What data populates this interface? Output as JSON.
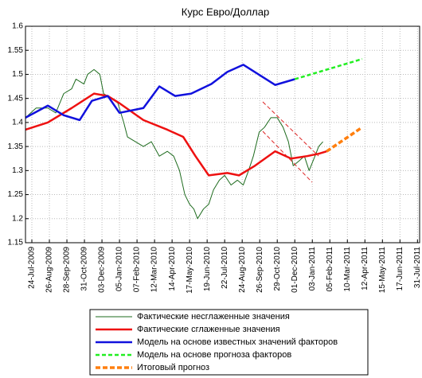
{
  "chart_data": {
    "type": "line",
    "title": "Курс Евро/Доллар",
    "xlim": [
      -12,
      730
    ],
    "xticks": [
      {
        "value": 0,
        "label": "24-Jul-2009"
      },
      {
        "value": 33,
        "label": "26-Aug-2009"
      },
      {
        "value": 66,
        "label": "28-Sep-2009"
      },
      {
        "value": 99,
        "label": "31-Oct-2009"
      },
      {
        "value": 132,
        "label": "03-Dec-2009"
      },
      {
        "value": 165,
        "label": "05-Jan-2010"
      },
      {
        "value": 198,
        "label": "07-Feb-2010"
      },
      {
        "value": 231,
        "label": "12-Mar-2010"
      },
      {
        "value": 264,
        "label": "14-Apr-2010"
      },
      {
        "value": 297,
        "label": "17-May-2010"
      },
      {
        "value": 330,
        "label": "19-Jun-2010"
      },
      {
        "value": 363,
        "label": "22-Jul-2010"
      },
      {
        "value": 396,
        "label": "24-Aug-2010"
      },
      {
        "value": 429,
        "label": "26-Sep-2010"
      },
      {
        "value": 462,
        "label": "29-Oct-2010"
      },
      {
        "value": 495,
        "label": "01-Dec-2010"
      },
      {
        "value": 528,
        "label": "03-Jan-2011"
      },
      {
        "value": 561,
        "label": "05-Feb-2011"
      },
      {
        "value": 594,
        "label": "10-Mar-2011"
      },
      {
        "value": 627,
        "label": "12-Apr-2011"
      },
      {
        "value": 660,
        "label": "15-May-2011"
      },
      {
        "value": 693,
        "label": "17-Jun-2011"
      },
      {
        "value": 726,
        "label": "31-Jul-2011"
      }
    ],
    "ylim": [
      1.15,
      1.6
    ],
    "yticks": [
      1.15,
      1.2,
      1.25,
      1.3,
      1.35,
      1.4,
      1.45,
      1.5,
      1.55,
      1.6
    ],
    "grid": true,
    "series": [
      {
        "name": "Фактические несглаженные значения",
        "color": "#1e6b1e",
        "style": "solid",
        "x": [
          -12,
          8,
          30,
          45,
          60,
          75,
          83,
          98,
          105,
          117,
          128,
          135,
          150,
          162,
          173,
          180,
          195,
          210,
          225,
          240,
          255,
          267,
          278,
          288,
          297,
          305,
          312,
          323,
          333,
          342,
          353,
          363,
          375,
          387,
          398,
          408,
          417,
          428,
          438,
          450,
          462,
          473,
          483,
          492,
          503,
          513,
          522,
          533,
          540,
          548
        ],
        "values": [
          1.41,
          1.43,
          1.43,
          1.42,
          1.46,
          1.47,
          1.49,
          1.48,
          1.5,
          1.51,
          1.5,
          1.46,
          1.45,
          1.44,
          1.4,
          1.37,
          1.36,
          1.35,
          1.36,
          1.33,
          1.34,
          1.33,
          1.3,
          1.25,
          1.23,
          1.22,
          1.2,
          1.22,
          1.23,
          1.26,
          1.28,
          1.29,
          1.27,
          1.28,
          1.27,
          1.3,
          1.33,
          1.38,
          1.39,
          1.41,
          1.41,
          1.39,
          1.36,
          1.31,
          1.32,
          1.33,
          1.3,
          1.33,
          1.35,
          1.36
        ]
      },
      {
        "name": "Фактические сглаженные значения",
        "color": "#ee1111",
        "style": "solid",
        "x": [
          -12,
          30,
          75,
          117,
          143,
          165,
          210,
          255,
          285,
          308,
          333,
          368,
          390,
          420,
          458,
          488,
          518,
          540,
          555
        ],
        "values": [
          1.385,
          1.4,
          1.43,
          1.46,
          1.455,
          1.44,
          1.405,
          1.385,
          1.37,
          1.33,
          1.29,
          1.295,
          1.29,
          1.31,
          1.34,
          1.325,
          1.33,
          1.335,
          1.34
        ]
      },
      {
        "name": "Модель на основе известных значений факторов",
        "color": "#1111dd",
        "style": "solid",
        "x": [
          -12,
          30,
          60,
          90,
          113,
          143,
          165,
          210,
          240,
          270,
          300,
          338,
          368,
          398,
          458,
          495
        ],
        "values": [
          1.41,
          1.435,
          1.415,
          1.405,
          1.445,
          1.455,
          1.42,
          1.43,
          1.475,
          1.455,
          1.46,
          1.48,
          1.505,
          1.52,
          1.478,
          1.49
        ]
      },
      {
        "name": "Модель на основе прогноза факторов",
        "color": "#22ee22",
        "style": "dashed",
        "x": [
          495,
          622
        ],
        "values": [
          1.49,
          1.532
        ]
      },
      {
        "name": "Итоговый прогноз",
        "color": "#ff7f0e",
        "style": "dashed",
        "x": [
          555,
          622
        ],
        "values": [
          1.34,
          1.39
        ]
      }
    ]
  }
}
